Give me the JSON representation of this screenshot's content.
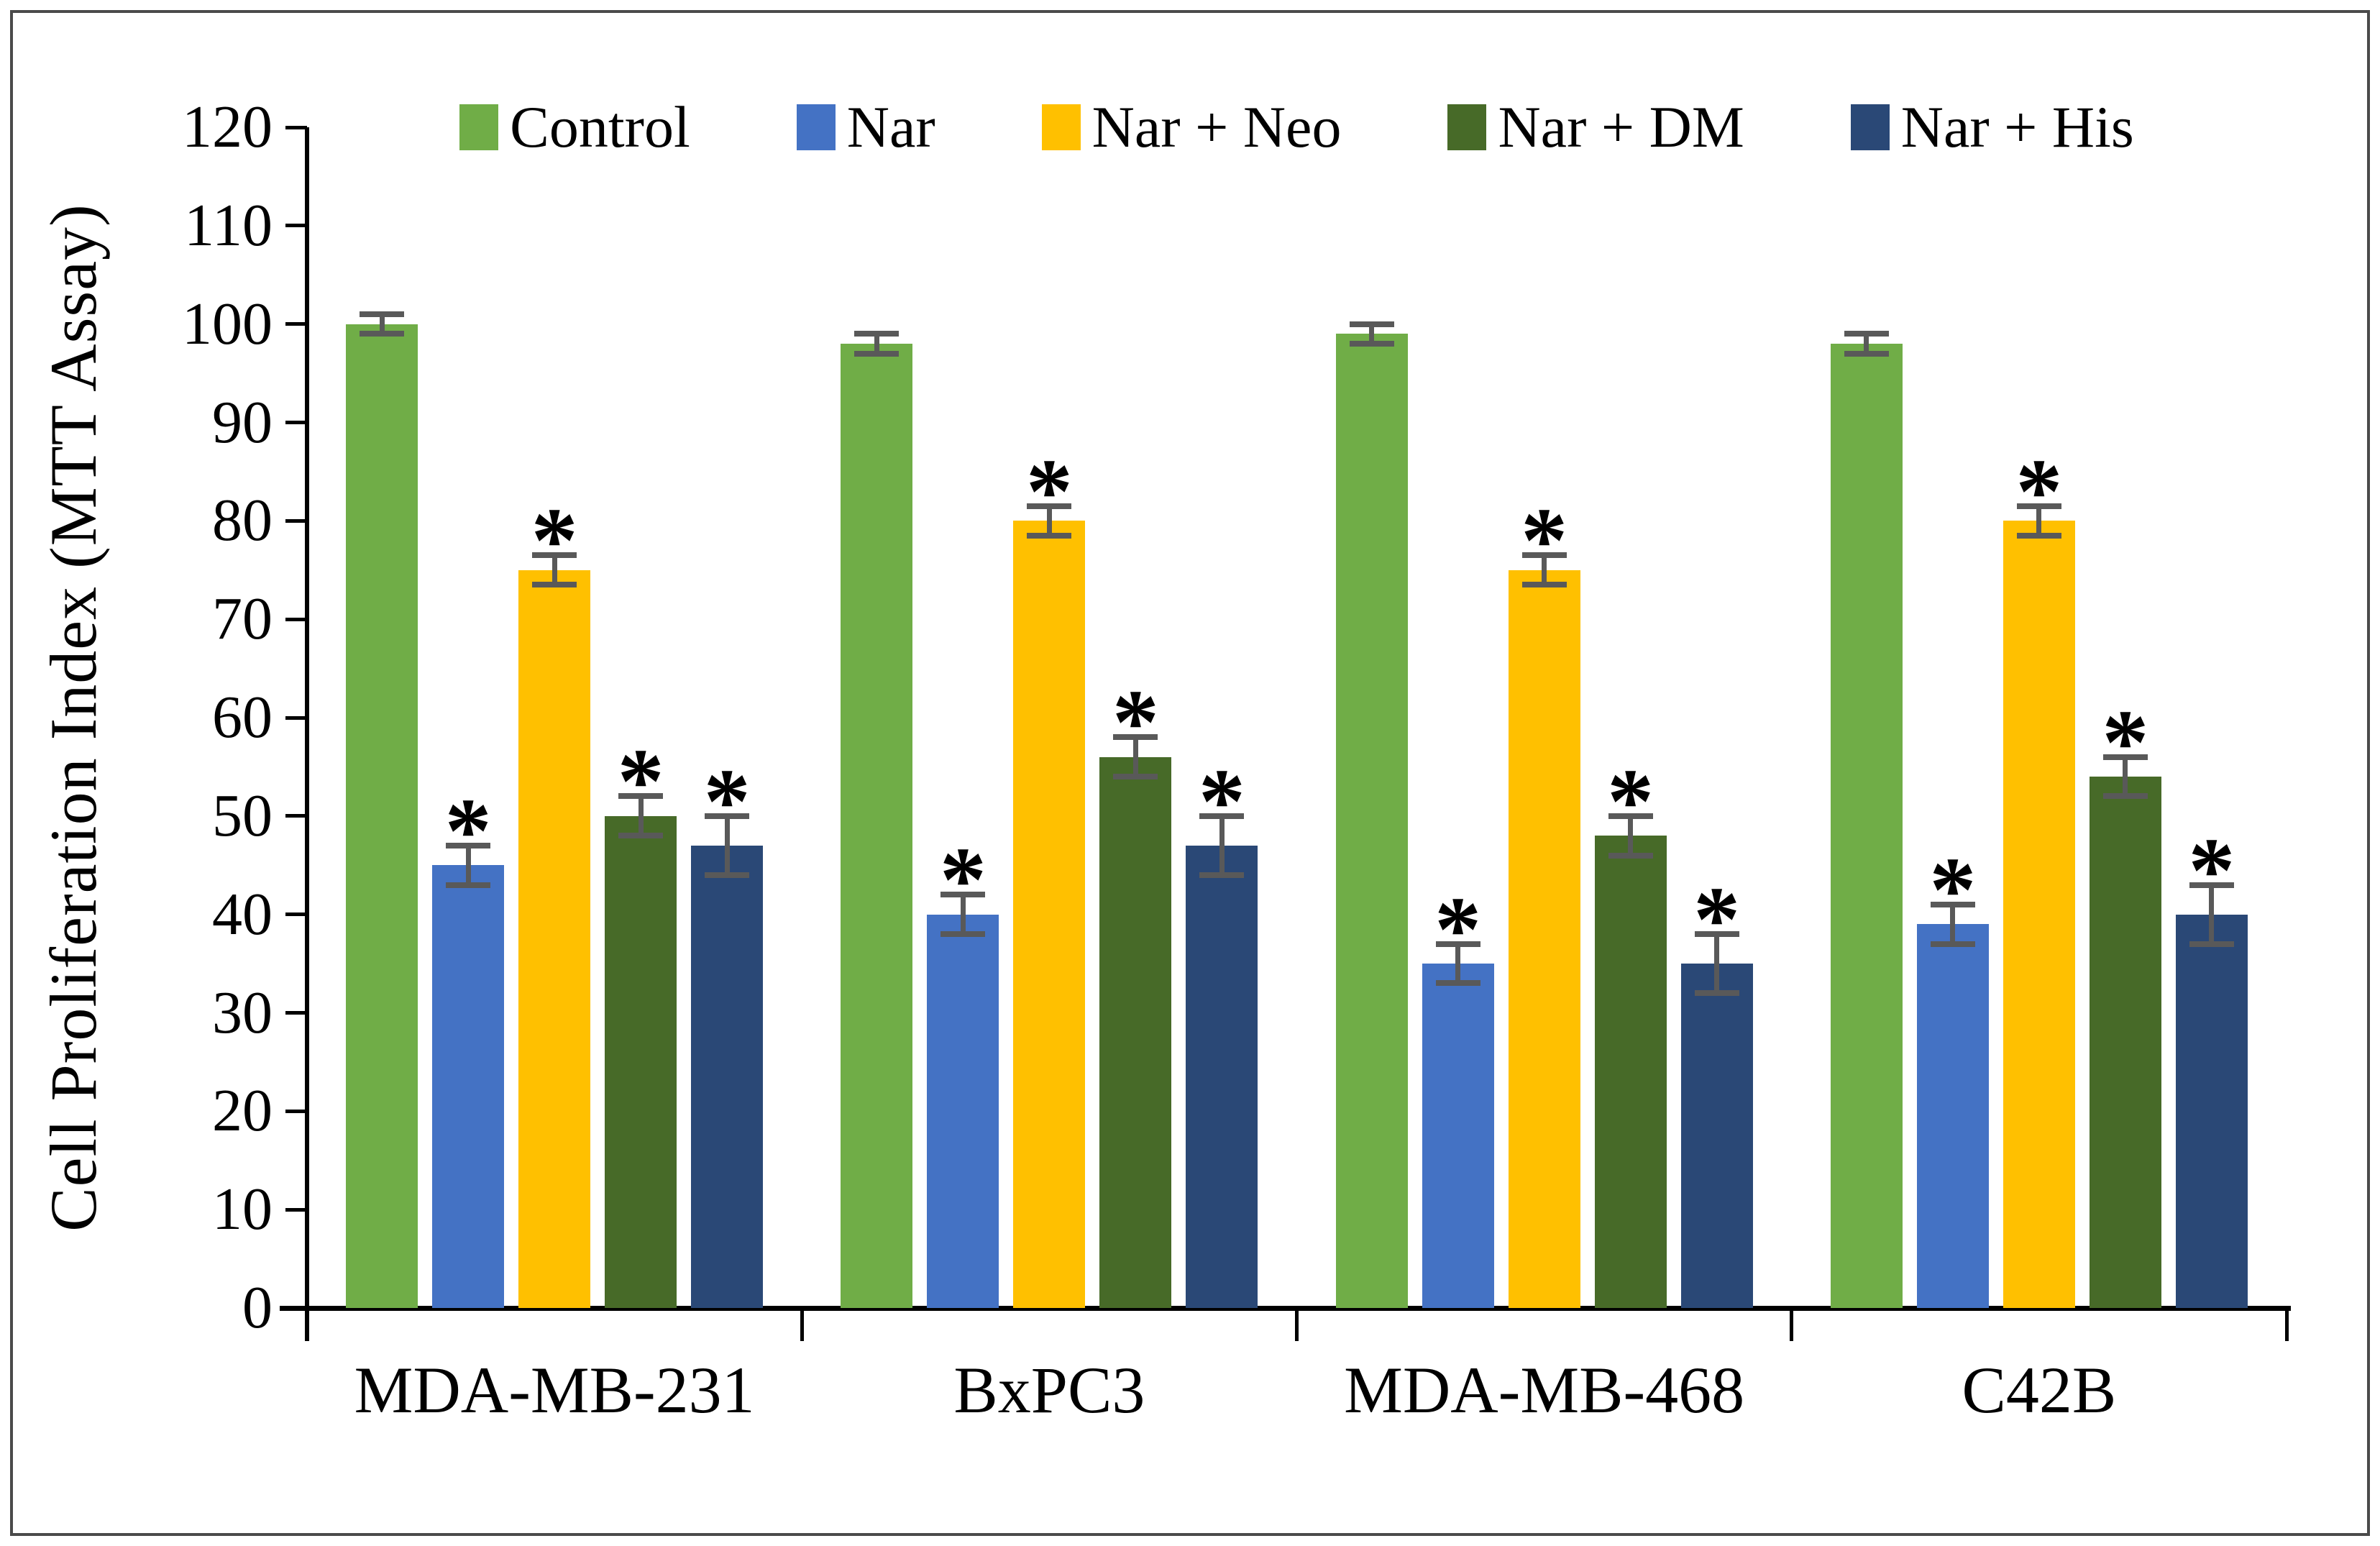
{
  "figure": {
    "background": "#ffffff",
    "border_color": "#4a4a4a"
  },
  "chart_data": {
    "type": "bar",
    "title": "",
    "xlabel": "",
    "ylabel": "Cell Proliferation Index (MTT Assay)",
    "ylim": [
      0,
      120
    ],
    "ytick_step": 10,
    "ytick_labels": [
      "0",
      "10",
      "20",
      "30",
      "40",
      "50",
      "60",
      "70",
      "80",
      "90",
      "100",
      "110",
      "120"
    ],
    "grid": false,
    "legend_position": "top",
    "categories": [
      "MDA-MB-231",
      "BxPC3",
      "MDA-MB-468",
      "C42B"
    ],
    "series": [
      {
        "name": "Control",
        "color": "#70AD47",
        "values": [
          100,
          98,
          99,
          98
        ],
        "errors": [
          1,
          1,
          1,
          1
        ],
        "significant": [
          false,
          false,
          false,
          false
        ]
      },
      {
        "name": "Nar",
        "color": "#4472C4",
        "values": [
          45,
          40,
          35,
          39
        ],
        "errors": [
          2,
          2,
          2,
          2
        ],
        "significant": [
          true,
          true,
          true,
          true
        ]
      },
      {
        "name": "Nar + Neo",
        "color": "#FFC000",
        "values": [
          75,
          80,
          75,
          80
        ],
        "errors": [
          1.5,
          1.5,
          1.5,
          1.5
        ],
        "significant": [
          true,
          true,
          true,
          true
        ]
      },
      {
        "name": "Nar + DM",
        "color": "#476A28",
        "values": [
          50,
          56,
          48,
          54
        ],
        "errors": [
          2,
          2,
          2,
          2
        ],
        "significant": [
          true,
          true,
          true,
          true
        ]
      },
      {
        "name": "Nar + His",
        "color": "#2A4876",
        "values": [
          47,
          47,
          35,
          40
        ],
        "errors": [
          3,
          3,
          3,
          3
        ],
        "significant": [
          true,
          true,
          true,
          true
        ]
      }
    ],
    "error_bars": true,
    "error_bar_color": "#595959",
    "axis_color": "#000000",
    "significance_marker": "*"
  }
}
